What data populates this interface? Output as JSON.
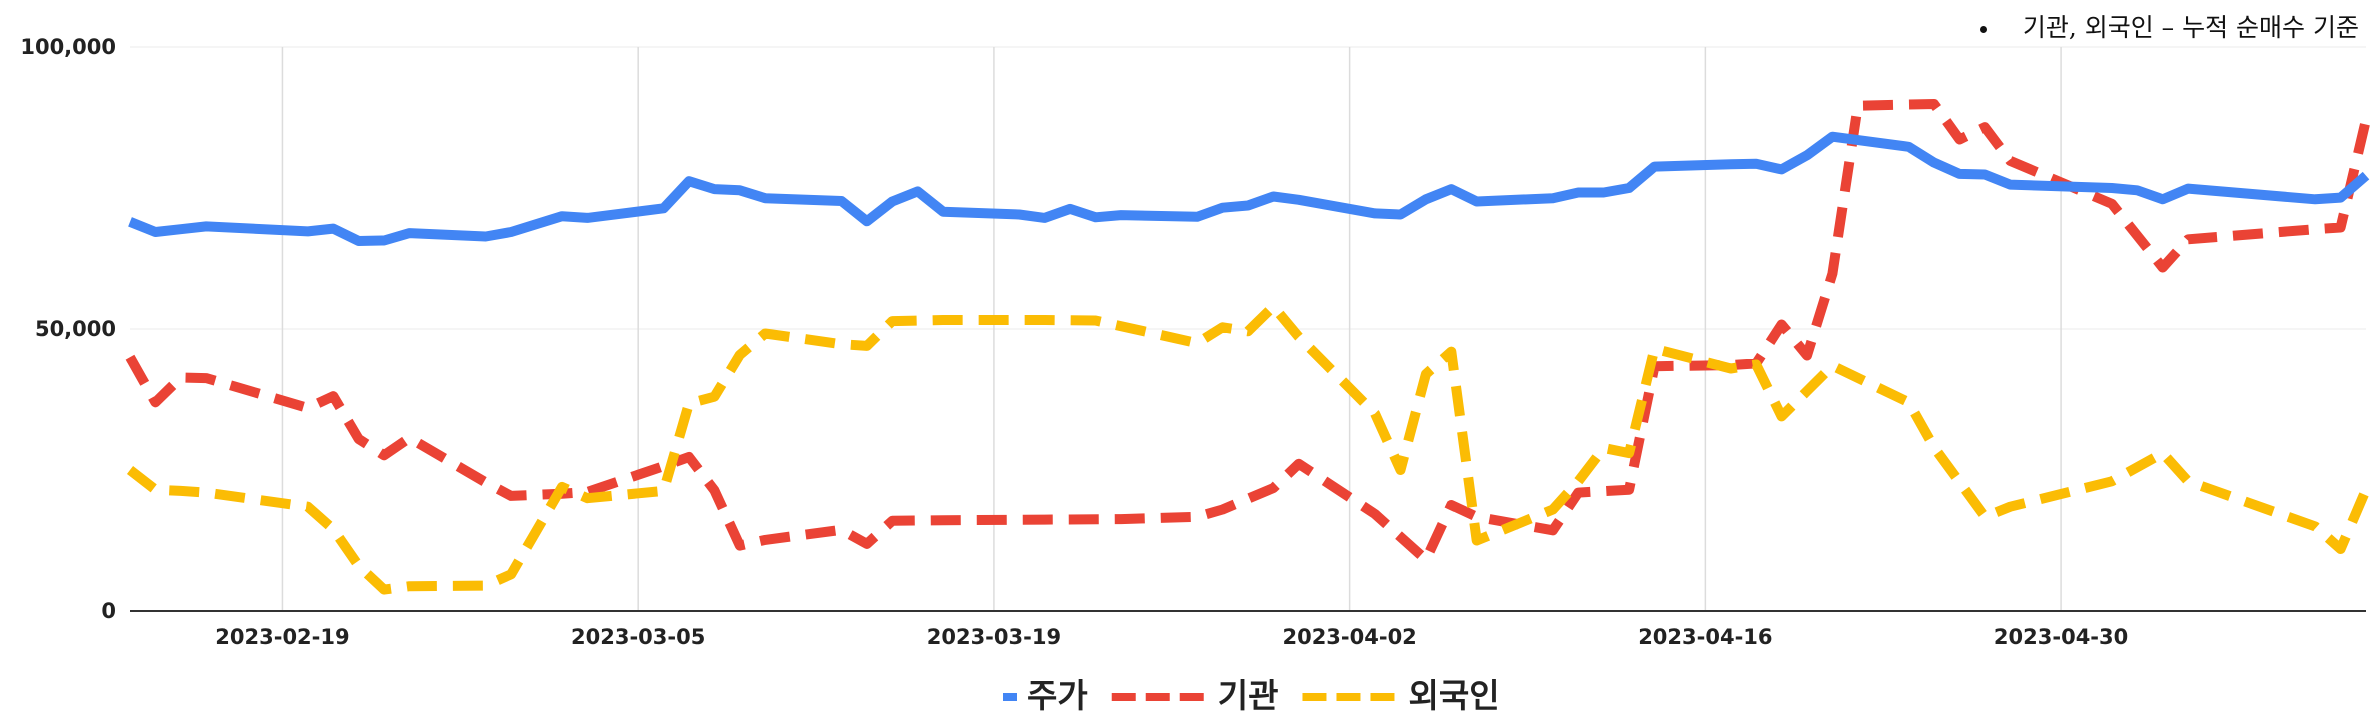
{
  "annotation": "기관, 외국인 – 누적 순매수 기준",
  "chart_data": {
    "type": "line",
    "title": "",
    "xlabel": "",
    "ylabel": "",
    "x_range": [
      "2023-02-13",
      "2023-05-12"
    ],
    "ylim": [
      0,
      100000
    ],
    "y_ticks": [
      0,
      50000,
      100000
    ],
    "y_tick_labels": [
      "0",
      "50,000",
      "100,000"
    ],
    "x_ticks": [
      "2023-02-19",
      "2023-03-05",
      "2023-03-19",
      "2023-04-02",
      "2023-04-16",
      "2023-04-30"
    ],
    "grid": true,
    "legend_position": "bottom",
    "series": [
      {
        "name": "주가",
        "color": "#4285F4",
        "dash": "solid",
        "points": [
          [
            "2023-02-13",
            69000
          ],
          [
            "2023-02-14",
            67200
          ],
          [
            "2023-02-15",
            67700
          ],
          [
            "2023-02-16",
            68200
          ],
          [
            "2023-02-20",
            67300
          ],
          [
            "2023-02-21",
            67800
          ],
          [
            "2023-02-22",
            65600
          ],
          [
            "2023-02-23",
            65700
          ],
          [
            "2023-02-24",
            67000
          ],
          [
            "2023-02-27",
            66400
          ],
          [
            "2023-02-28",
            67200
          ],
          [
            "2023-03-02",
            70000
          ],
          [
            "2023-03-03",
            69700
          ],
          [
            "2023-03-06",
            71400
          ],
          [
            "2023-03-07",
            76200
          ],
          [
            "2023-03-08",
            74800
          ],
          [
            "2023-03-09",
            74600
          ],
          [
            "2023-03-10",
            73200
          ],
          [
            "2023-03-13",
            72700
          ],
          [
            "2023-03-14",
            69100
          ],
          [
            "2023-03-15",
            72600
          ],
          [
            "2023-03-16",
            74400
          ],
          [
            "2023-03-17",
            70800
          ],
          [
            "2023-03-20",
            70300
          ],
          [
            "2023-03-21",
            69700
          ],
          [
            "2023-03-22",
            71300
          ],
          [
            "2023-03-23",
            69800
          ],
          [
            "2023-03-24",
            70200
          ],
          [
            "2023-03-27",
            69900
          ],
          [
            "2023-03-28",
            71500
          ],
          [
            "2023-03-29",
            71900
          ],
          [
            "2023-03-30",
            73500
          ],
          [
            "2023-03-31",
            72900
          ],
          [
            "2023-04-03",
            70500
          ],
          [
            "2023-04-04",
            70300
          ],
          [
            "2023-04-05",
            73000
          ],
          [
            "2023-04-06",
            74800
          ],
          [
            "2023-04-07",
            72600
          ],
          [
            "2023-04-10",
            73200
          ],
          [
            "2023-04-11",
            74200
          ],
          [
            "2023-04-12",
            74200
          ],
          [
            "2023-04-13",
            75000
          ],
          [
            "2023-04-14",
            78800
          ],
          [
            "2023-04-17",
            79200
          ],
          [
            "2023-04-18",
            79300
          ],
          [
            "2023-04-19",
            78300
          ],
          [
            "2023-04-20",
            80800
          ],
          [
            "2023-04-21",
            84100
          ],
          [
            "2023-04-24",
            82300
          ],
          [
            "2023-04-25",
            79500
          ],
          [
            "2023-04-26",
            77500
          ],
          [
            "2023-04-27",
            77400
          ],
          [
            "2023-04-28",
            75600
          ],
          [
            "2023-05-02",
            75000
          ],
          [
            "2023-05-03",
            74600
          ],
          [
            "2023-05-04",
            73000
          ],
          [
            "2023-05-05",
            74900
          ],
          [
            "2023-05-10",
            73000
          ],
          [
            "2023-05-11",
            73300
          ],
          [
            "2023-05-12",
            77200
          ]
        ]
      },
      {
        "name": "기관",
        "color": "#EA4335",
        "dash": "dashed",
        "points": [
          [
            "2023-02-13",
            45000
          ],
          [
            "2023-02-14",
            37000
          ],
          [
            "2023-02-15",
            41400
          ],
          [
            "2023-02-16",
            41300
          ],
          [
            "2023-02-20",
            36000
          ],
          [
            "2023-02-21",
            38100
          ],
          [
            "2023-02-22",
            30500
          ],
          [
            "2023-02-23",
            27600
          ],
          [
            "2023-02-24",
            30700
          ],
          [
            "2023-02-27",
            22800
          ],
          [
            "2023-02-28",
            20400
          ],
          [
            "2023-03-02",
            20800
          ],
          [
            "2023-03-03",
            21100
          ],
          [
            "2023-03-06",
            25700
          ],
          [
            "2023-03-07",
            27300
          ],
          [
            "2023-03-08",
            21400
          ],
          [
            "2023-03-09",
            11600
          ],
          [
            "2023-03-10",
            12600
          ],
          [
            "2023-03-13",
            14400
          ],
          [
            "2023-03-14",
            11900
          ],
          [
            "2023-03-15",
            16000
          ],
          [
            "2023-03-17",
            16100
          ],
          [
            "2023-03-21",
            16200
          ],
          [
            "2023-03-24",
            16300
          ],
          [
            "2023-03-27",
            16700
          ],
          [
            "2023-03-28",
            18000
          ],
          [
            "2023-03-30",
            21800
          ],
          [
            "2023-03-31",
            26100
          ],
          [
            "2023-04-03",
            17200
          ],
          [
            "2023-04-05",
            9100
          ],
          [
            "2023-04-06",
            18800
          ],
          [
            "2023-04-07",
            16700
          ],
          [
            "2023-04-10",
            14300
          ],
          [
            "2023-04-11",
            21000
          ],
          [
            "2023-04-13",
            21500
          ],
          [
            "2023-04-14",
            43400
          ],
          [
            "2023-04-17",
            43600
          ],
          [
            "2023-04-18",
            43900
          ],
          [
            "2023-04-19",
            50800
          ],
          [
            "2023-04-20",
            45300
          ],
          [
            "2023-04-21",
            59800
          ],
          [
            "2023-04-22",
            89600
          ],
          [
            "2023-04-25",
            89900
          ],
          [
            "2023-04-26",
            83600
          ],
          [
            "2023-04-27",
            85800
          ],
          [
            "2023-04-28",
            79800
          ],
          [
            "2023-05-02",
            72200
          ],
          [
            "2023-05-04",
            60900
          ],
          [
            "2023-05-05",
            65900
          ],
          [
            "2023-05-10",
            67700
          ],
          [
            "2023-05-11",
            68000
          ],
          [
            "2023-05-12",
            87100
          ]
        ]
      },
      {
        "name": "외국인",
        "color": "#FBBC04",
        "dash": "dashed",
        "points": [
          [
            "2023-02-13",
            25000
          ],
          [
            "2023-02-14",
            21500
          ],
          [
            "2023-02-15",
            21300
          ],
          [
            "2023-02-16",
            21000
          ],
          [
            "2023-02-20",
            18500
          ],
          [
            "2023-02-21",
            14500
          ],
          [
            "2023-02-22",
            8000
          ],
          [
            "2023-02-23",
            3800
          ],
          [
            "2023-02-24",
            4400
          ],
          [
            "2023-02-27",
            4500
          ],
          [
            "2023-02-28",
            6500
          ],
          [
            "2023-03-02",
            22000
          ],
          [
            "2023-03-03",
            20000
          ],
          [
            "2023-03-06",
            21300
          ],
          [
            "2023-03-07",
            36800
          ],
          [
            "2023-03-08",
            38000
          ],
          [
            "2023-03-09",
            45400
          ],
          [
            "2023-03-10",
            49200
          ],
          [
            "2023-03-13",
            47300
          ],
          [
            "2023-03-14",
            47000
          ],
          [
            "2023-03-15",
            51400
          ],
          [
            "2023-03-17",
            51600
          ],
          [
            "2023-03-21",
            51600
          ],
          [
            "2023-03-23",
            51500
          ],
          [
            "2023-03-27",
            47500
          ],
          [
            "2023-03-28",
            50300
          ],
          [
            "2023-03-29",
            49600
          ],
          [
            "2023-03-30",
            54000
          ],
          [
            "2023-03-31",
            48600
          ],
          [
            "2023-04-03",
            35000
          ],
          [
            "2023-04-04",
            25000
          ],
          [
            "2023-04-05",
            42000
          ],
          [
            "2023-04-06",
            46000
          ],
          [
            "2023-04-07",
            12500
          ],
          [
            "2023-04-10",
            18000
          ],
          [
            "2023-04-11",
            23000
          ],
          [
            "2023-04-12",
            28900
          ],
          [
            "2023-04-13",
            28000
          ],
          [
            "2023-04-14",
            46500
          ],
          [
            "2023-04-17",
            43000
          ],
          [
            "2023-04-18",
            43700
          ],
          [
            "2023-04-19",
            34500
          ],
          [
            "2023-04-20",
            39000
          ],
          [
            "2023-04-21",
            43500
          ],
          [
            "2023-04-24",
            37000
          ],
          [
            "2023-04-25",
            29000
          ],
          [
            "2023-04-27",
            16700
          ],
          [
            "2023-04-28",
            18500
          ],
          [
            "2023-05-02",
            23000
          ],
          [
            "2023-05-04",
            28000
          ],
          [
            "2023-05-05",
            23000
          ],
          [
            "2023-05-10",
            15000
          ],
          [
            "2023-05-11",
            11000
          ],
          [
            "2023-05-12",
            21500
          ]
        ]
      }
    ]
  }
}
